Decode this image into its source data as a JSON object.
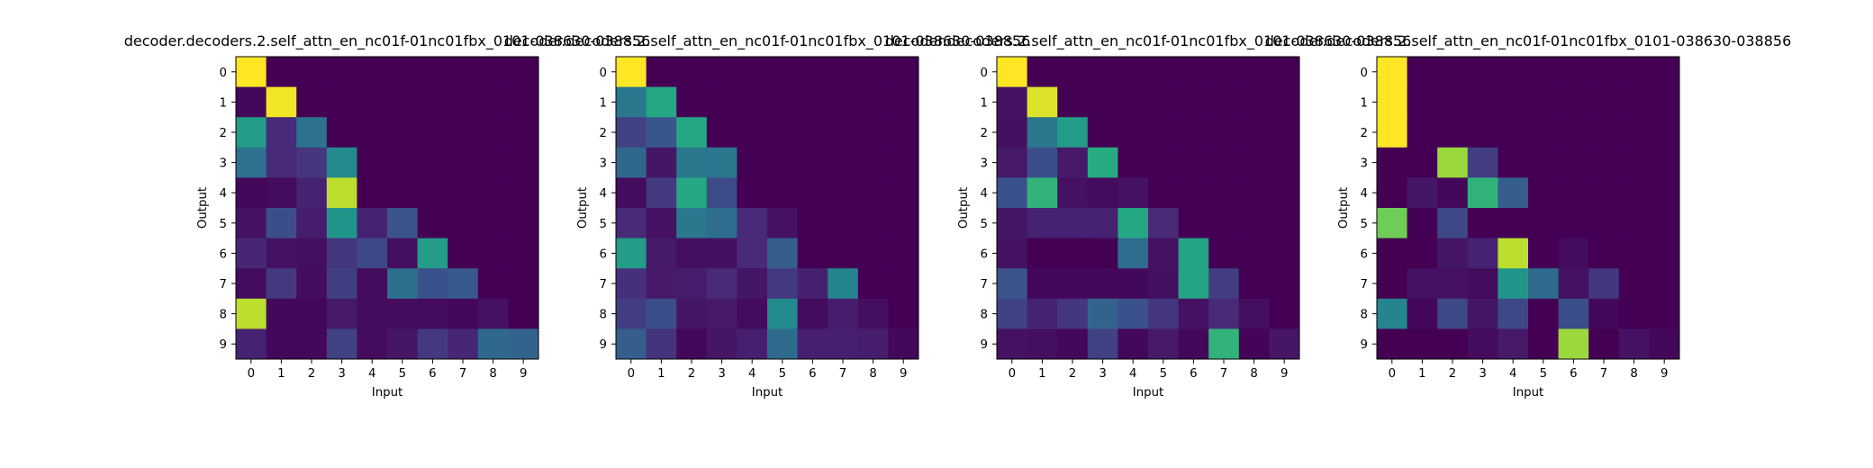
{
  "chart_data": [
    {
      "type": "heatmap",
      "title": "decoder.decoders.2.self_attn_en_nc01f-01nc01fbx_0101-038630-038856",
      "xlabel": "Input",
      "ylabel": "Output",
      "x_ticks": [
        "0",
        "1",
        "2",
        "3",
        "4",
        "5",
        "6",
        "7",
        "8",
        "9"
      ],
      "y_ticks": [
        "0",
        "1",
        "2",
        "3",
        "4",
        "5",
        "6",
        "7",
        "8",
        "9"
      ],
      "colormap": "viridis",
      "vmin": 0,
      "vmax": 1,
      "values": [
        [
          1.0,
          0,
          0,
          0,
          0,
          0,
          0,
          0,
          0,
          0
        ],
        [
          0.02,
          0.98,
          0,
          0,
          0,
          0,
          0,
          0,
          0,
          0
        ],
        [
          0.55,
          0.12,
          0.38,
          0,
          0,
          0,
          0,
          0,
          0,
          0
        ],
        [
          0.38,
          0.12,
          0.16,
          0.48,
          0,
          0,
          0,
          0,
          0,
          0
        ],
        [
          0.02,
          0.03,
          0.1,
          0.9,
          0,
          0,
          0,
          0,
          0,
          0
        ],
        [
          0.05,
          0.24,
          0.08,
          0.52,
          0.1,
          0.26,
          0,
          0,
          0,
          0
        ],
        [
          0.11,
          0.05,
          0.04,
          0.16,
          0.22,
          0.04,
          0.55,
          0,
          0,
          0
        ],
        [
          0.03,
          0.17,
          0.03,
          0.19,
          0.03,
          0.37,
          0.25,
          0.28,
          0,
          0
        ],
        [
          0.9,
          0.02,
          0.02,
          0.07,
          0.03,
          0.03,
          0.03,
          0.02,
          0.05,
          0
        ],
        [
          0.1,
          0.02,
          0.02,
          0.2,
          0.03,
          0.06,
          0.17,
          0.11,
          0.34,
          0.32
        ]
      ]
    },
    {
      "type": "heatmap",
      "title": "decoder.decoders.2.self_attn_en_nc01f-01nc01fbx_0101-038630-038856",
      "xlabel": "Input",
      "ylabel": "Output",
      "x_ticks": [
        "0",
        "1",
        "2",
        "3",
        "4",
        "5",
        "6",
        "7",
        "8",
        "9"
      ],
      "y_ticks": [
        "0",
        "1",
        "2",
        "3",
        "4",
        "5",
        "6",
        "7",
        "8",
        "9"
      ],
      "colormap": "viridis",
      "vmin": 0,
      "vmax": 1,
      "values": [
        [
          1.0,
          0,
          0,
          0,
          0,
          0,
          0,
          0,
          0,
          0
        ],
        [
          0.4,
          0.6,
          0,
          0,
          0,
          0,
          0,
          0,
          0,
          0
        ],
        [
          0.2,
          0.27,
          0.6,
          0,
          0,
          0,
          0,
          0,
          0,
          0
        ],
        [
          0.34,
          0.06,
          0.4,
          0.4,
          0,
          0,
          0,
          0,
          0,
          0
        ],
        [
          0.03,
          0.17,
          0.6,
          0.23,
          0,
          0,
          0,
          0,
          0,
          0
        ],
        [
          0.12,
          0.05,
          0.4,
          0.36,
          0.12,
          0.05,
          0,
          0,
          0,
          0
        ],
        [
          0.55,
          0.07,
          0.04,
          0.04,
          0.12,
          0.3,
          0,
          0,
          0,
          0
        ],
        [
          0.14,
          0.07,
          0.08,
          0.12,
          0.06,
          0.17,
          0.09,
          0.45,
          0,
          0
        ],
        [
          0.18,
          0.24,
          0.06,
          0.07,
          0.03,
          0.48,
          0.03,
          0.08,
          0.04,
          0
        ],
        [
          0.3,
          0.15,
          0.02,
          0.06,
          0.09,
          0.35,
          0.09,
          0.09,
          0.08,
          0.02
        ]
      ]
    },
    {
      "type": "heatmap",
      "title": "decoder.decoders.2.self_attn_en_nc01f-01nc01fbx_0101-038630-038856",
      "xlabel": "Input",
      "ylabel": "Output",
      "x_ticks": [
        "0",
        "1",
        "2",
        "3",
        "4",
        "5",
        "6",
        "7",
        "8",
        "9"
      ],
      "y_ticks": [
        "0",
        "1",
        "2",
        "3",
        "4",
        "5",
        "6",
        "7",
        "8",
        "9"
      ],
      "colormap": "viridis",
      "vmin": 0,
      "vmax": 1,
      "values": [
        [
          1.0,
          0,
          0,
          0,
          0,
          0,
          0,
          0,
          0,
          0
        ],
        [
          0.05,
          0.95,
          0,
          0,
          0,
          0,
          0,
          0,
          0,
          0
        ],
        [
          0.04,
          0.4,
          0.55,
          0,
          0,
          0,
          0,
          0,
          0,
          0
        ],
        [
          0.07,
          0.24,
          0.07,
          0.62,
          0,
          0,
          0,
          0,
          0,
          0
        ],
        [
          0.25,
          0.65,
          0.05,
          0.03,
          0.05,
          0,
          0,
          0,
          0,
          0
        ],
        [
          0.06,
          0.1,
          0.1,
          0.1,
          0.6,
          0.12,
          0,
          0,
          0,
          0
        ],
        [
          0.05,
          0,
          0,
          0,
          0.36,
          0.05,
          0.58,
          0,
          0,
          0
        ],
        [
          0.26,
          0.02,
          0.02,
          0.02,
          0.02,
          0.04,
          0.58,
          0.18,
          0,
          0
        ],
        [
          0.2,
          0.1,
          0.16,
          0.32,
          0.25,
          0.16,
          0.05,
          0.12,
          0.04,
          0
        ],
        [
          0.05,
          0.04,
          0.02,
          0.2,
          0.02,
          0.07,
          0.02,
          0.65,
          0.01,
          0.06
        ]
      ]
    },
    {
      "type": "heatmap",
      "title": "decoder.decoders.2.self_attn_en_nc01f-01nc01fbx_0101-038630-038856",
      "xlabel": "Input",
      "ylabel": "Output",
      "x_ticks": [
        "0",
        "1",
        "2",
        "3",
        "4",
        "5",
        "6",
        "7",
        "8",
        "9"
      ],
      "y_ticks": [
        "0",
        "1",
        "2",
        "3",
        "4",
        "5",
        "6",
        "7",
        "8",
        "9"
      ],
      "colormap": "viridis",
      "vmin": 0,
      "vmax": 1,
      "values": [
        [
          1.0,
          0,
          0,
          0,
          0,
          0,
          0,
          0,
          0,
          0
        ],
        [
          1.0,
          0,
          0,
          0,
          0,
          0,
          0,
          0,
          0,
          0
        ],
        [
          1.0,
          0,
          0,
          0,
          0,
          0,
          0,
          0,
          0,
          0
        ],
        [
          0,
          0,
          0.85,
          0.18,
          0,
          0,
          0,
          0,
          0,
          0
        ],
        [
          0,
          0.06,
          0.02,
          0.65,
          0.3,
          0,
          0,
          0,
          0,
          0
        ],
        [
          0.78,
          0,
          0.22,
          0,
          0,
          0,
          0,
          0,
          0,
          0
        ],
        [
          0,
          0,
          0.06,
          0.1,
          0.9,
          0,
          0.03,
          0,
          0,
          0
        ],
        [
          0,
          0.05,
          0.05,
          0.03,
          0.52,
          0.35,
          0.05,
          0.16,
          0,
          0
        ],
        [
          0.45,
          0.02,
          0.22,
          0.06,
          0.22,
          0,
          0.24,
          0.02,
          0,
          0
        ],
        [
          0,
          0,
          0,
          0.03,
          0.07,
          0,
          0.85,
          0,
          0.05,
          0.02
        ]
      ]
    }
  ]
}
